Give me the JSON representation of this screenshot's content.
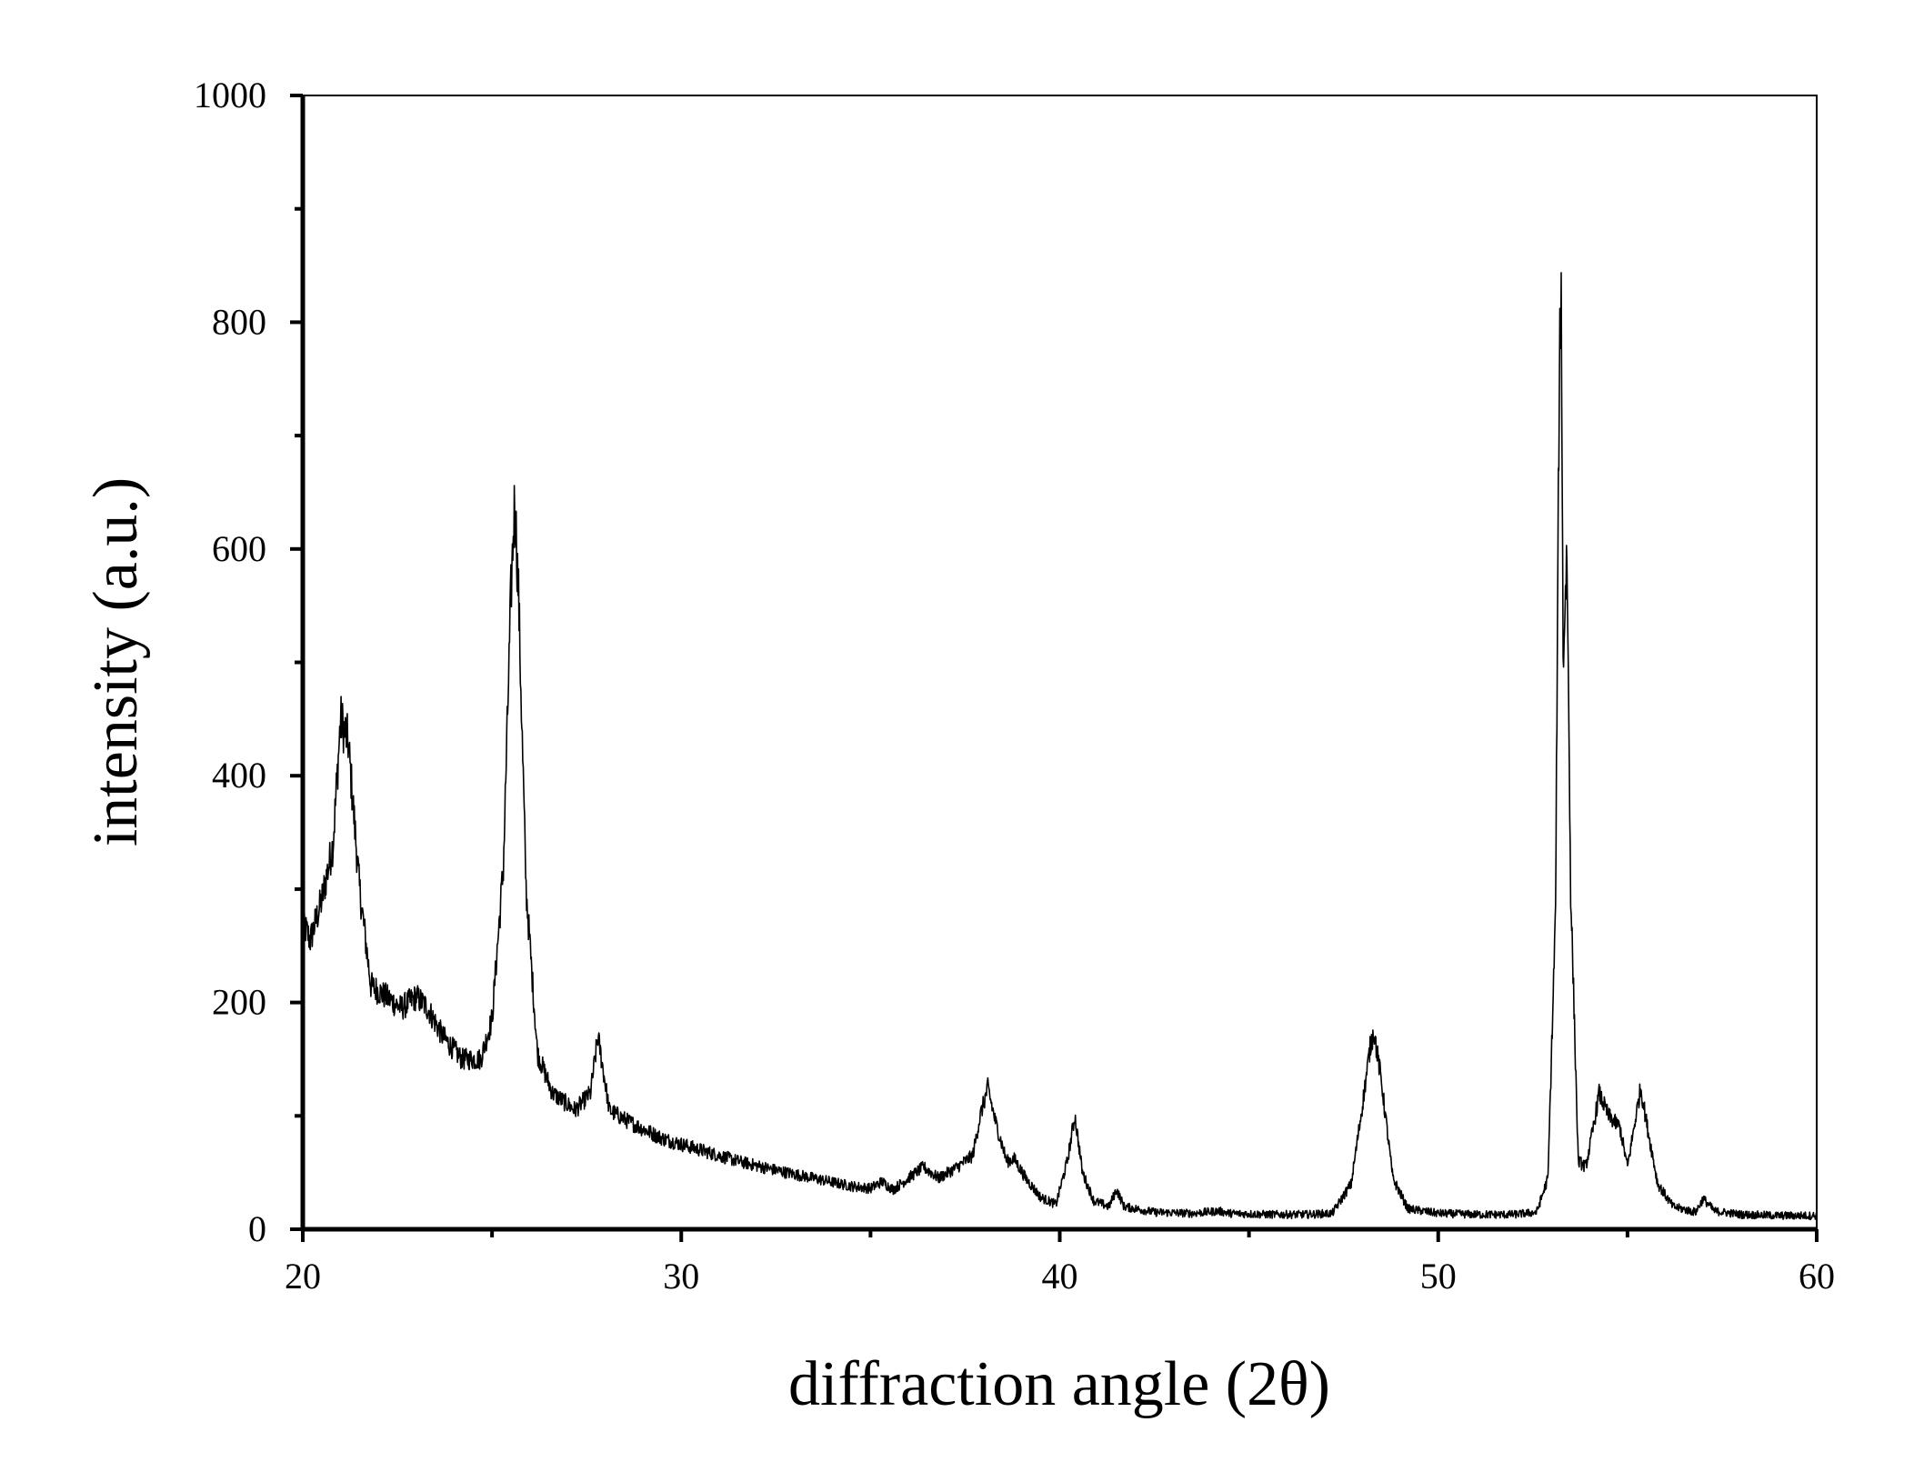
{
  "chart_data": {
    "type": "line",
    "xlabel": "diffraction angle (2θ)",
    "ylabel": "intensity (a.u.)",
    "xlim": [
      20,
      60
    ],
    "ylim": [
      0,
      1000
    ],
    "x_ticks": [
      20,
      30,
      40,
      50,
      60
    ],
    "y_ticks": [
      0,
      200,
      400,
      600,
      800,
      1000
    ],
    "x_minor_step": 5,
    "y_minor_step": 100,
    "grid": false,
    "legend": "none",
    "line_color": "#000000",
    "series": [
      {
        "x": [
          20.0,
          20.2,
          20.5,
          20.8,
          21.0,
          21.2,
          21.5,
          21.8,
          22.2,
          22.6,
          23.0,
          23.3,
          23.7,
          24.2,
          24.7,
          25.0,
          25.3,
          25.5,
          25.6,
          25.7,
          25.9,
          26.2,
          26.6,
          27.2,
          27.6,
          27.8,
          28.1,
          28.6,
          29.5,
          30.5,
          31.5,
          32.5,
          33.5,
          34.5,
          35.0,
          35.3,
          35.6,
          36.0,
          36.4,
          36.8,
          37.3,
          37.7,
          37.9,
          38.1,
          38.3,
          38.6,
          38.8,
          39.1,
          39.5,
          39.9,
          40.2,
          40.4,
          40.6,
          40.9,
          41.3,
          41.5,
          41.7,
          42.5,
          43.5,
          44.2,
          44.5,
          45.5,
          46.5,
          47.2,
          47.7,
          48.0,
          48.2,
          48.3,
          48.5,
          48.8,
          49.2,
          50.0,
          51.0,
          52.0,
          52.6,
          52.9,
          53.1,
          53.2,
          53.25,
          53.3,
          53.4,
          53.5,
          53.7,
          53.9,
          54.1,
          54.25,
          54.5,
          54.8,
          55.0,
          55.2,
          55.35,
          55.5,
          55.8,
          56.2,
          56.8,
          57.0,
          57.3,
          58.0,
          59.0,
          60.0
        ],
        "values": [
          270,
          255,
          290,
          340,
          450,
          430,
          300,
          215,
          205,
          195,
          205,
          195,
          170,
          150,
          150,
          185,
          320,
          560,
          645,
          560,
          300,
          155,
          120,
          105,
          120,
          170,
          105,
          95,
          80,
          70,
          60,
          52,
          45,
          38,
          36,
          42,
          35,
          45,
          55,
          45,
          55,
          65,
          100,
          125,
          95,
          60,
          62,
          45,
          28,
          22,
          60,
          100,
          50,
          25,
          20,
          35,
          20,
          15,
          14,
          16,
          14,
          13,
          13,
          14,
          40,
          110,
          160,
          175,
          130,
          45,
          18,
          14,
          13,
          13,
          15,
          45,
          280,
          760,
          830,
          500,
          600,
          300,
          60,
          55,
          90,
          120,
          100,
          90,
          55,
          95,
          125,
          95,
          40,
          20,
          15,
          27,
          16,
          13,
          12,
          12
        ]
      }
    ]
  }
}
